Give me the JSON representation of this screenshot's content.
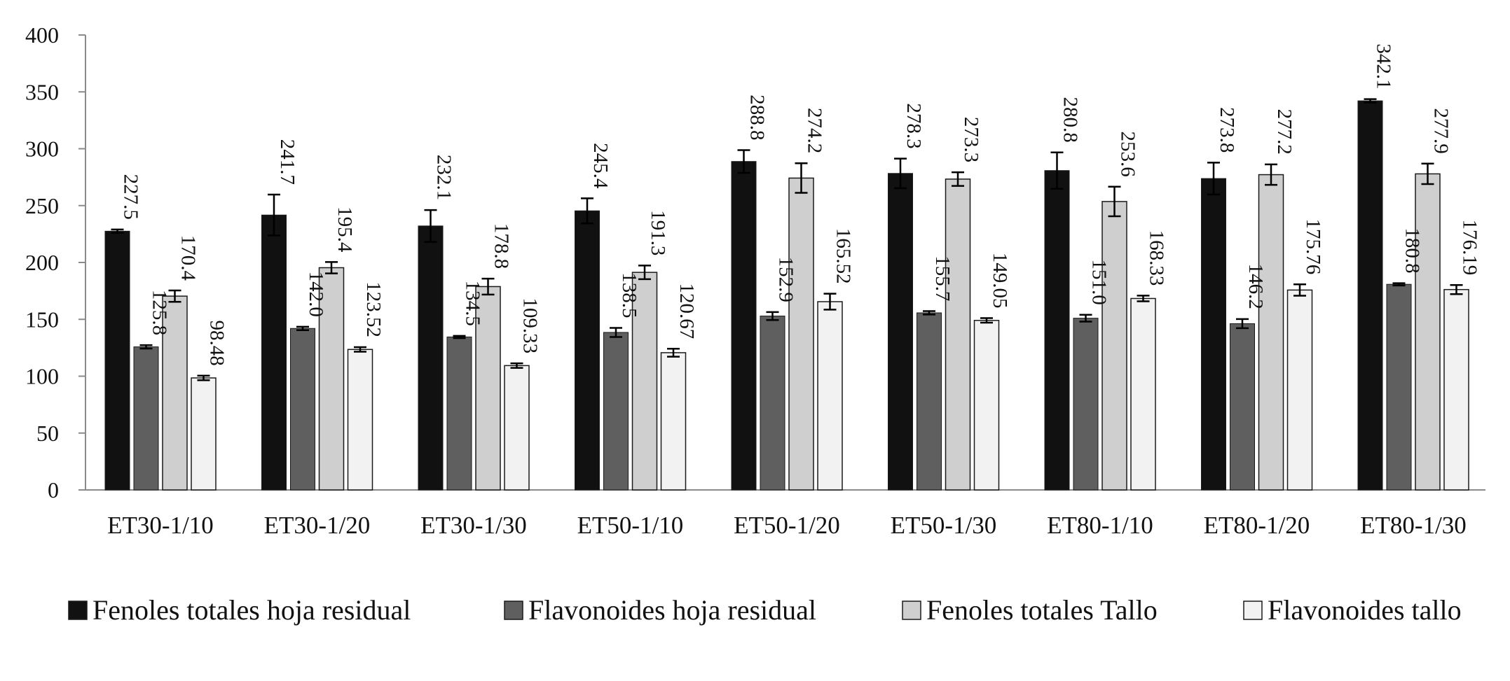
{
  "chart_data": {
    "type": "bar",
    "title": "",
    "xlabel": "",
    "ylabel": "",
    "ylim": [
      0,
      400
    ],
    "yticks": [
      "0",
      "50",
      "100",
      "150",
      "200",
      "250",
      "300",
      "350",
      "400"
    ],
    "grid": false,
    "legend_position": "bottom",
    "categories": [
      "ET30-1/10",
      "ET30-1/20",
      "ET30-1/30",
      "ET50-1/10",
      "ET50-1/20",
      "ET50-1/30",
      "ET80-1/10",
      "ET80-1/20",
      "ET80-1/30"
    ],
    "series": [
      {
        "name": "Fenoles totales hoja residual",
        "color": "#111111",
        "values": [
          227.5,
          241.7,
          232.1,
          245.4,
          288.8,
          278.3,
          280.8,
          273.8,
          342.1
        ],
        "labels": [
          "227.5",
          "241.7",
          "232.1",
          "245.4",
          "288.8",
          "278.3",
          "280.8",
          "273.8",
          "342.1"
        ],
        "errors": [
          1.5,
          18,
          14,
          11,
          10,
          13,
          16,
          14,
          1.5
        ]
      },
      {
        "name": "Flavonoides hoja residual",
        "color": "#5f5f5f",
        "values": [
          125.8,
          142.0,
          134.5,
          138.5,
          152.9,
          155.7,
          151.0,
          146.2,
          180.8
        ],
        "labels": [
          "125.8",
          "142.0",
          "134.5",
          "138.5",
          "152.9",
          "155.7",
          "151.0",
          "146.2",
          "180.8"
        ],
        "errors": [
          1.5,
          1.5,
          1.0,
          4.0,
          3.5,
          1.5,
          3.0,
          4.0,
          1.0
        ]
      },
      {
        "name": "Fenoles totales Tallo",
        "color": "#cfcfcf",
        "values": [
          170.4,
          195.4,
          178.8,
          191.3,
          274.2,
          273.3,
          253.6,
          277.2,
          277.9
        ],
        "labels": [
          "170.4",
          "195.4",
          "178.8",
          "191.3",
          "274.2",
          "273.3",
          "253.6",
          "277.2",
          "277.9"
        ],
        "errors": [
          5,
          5,
          7,
          6,
          13,
          6,
          13,
          9,
          9
        ]
      },
      {
        "name": "Flavonoides tallo",
        "color": "#f2f2f2",
        "values": [
          98.48,
          123.52,
          109.33,
          120.67,
          165.52,
          149.05,
          168.33,
          175.76,
          176.19
        ],
        "labels": [
          "98.48",
          "123.52",
          "109.33",
          "120.67",
          "165.52",
          "149.05",
          "168.33",
          "175.76",
          "176.19"
        ],
        "errors": [
          2,
          2,
          2,
          3.5,
          7,
          2,
          2.5,
          5,
          4
        ]
      }
    ]
  }
}
